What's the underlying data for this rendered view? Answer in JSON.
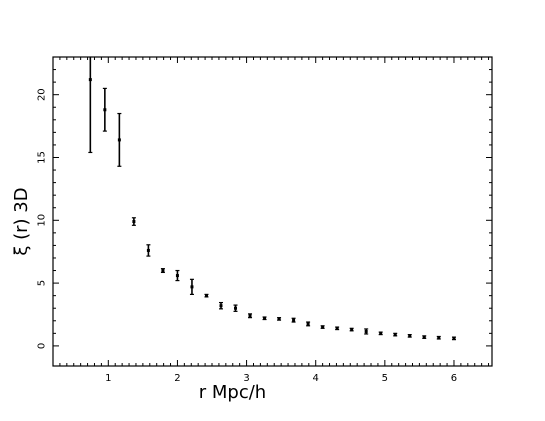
{
  "chart_data": {
    "type": "scatter",
    "title": "",
    "xlabel": "r  Mpc/h",
    "ylabel": "ξ (r)  3D",
    "xlim": [
      0.2,
      6.55
    ],
    "ylim": [
      -1.6,
      23.0
    ],
    "xticks": [
      1,
      2,
      3,
      4,
      5,
      6
    ],
    "yticks": [
      0,
      5,
      10,
      15,
      20
    ],
    "xtick_labels": [
      "1",
      "2",
      "3",
      "4",
      "5",
      "6"
    ],
    "ytick_labels": [
      "0",
      "5",
      "10",
      "15",
      "20"
    ],
    "grid": false,
    "legend": "none",
    "color": "#000000",
    "series": [
      {
        "points": [
          {
            "x": 0.74,
            "y": 21.2,
            "err": 5.8
          },
          {
            "x": 0.95,
            "y": 18.8,
            "err": 1.7
          },
          {
            "x": 1.16,
            "y": 16.4,
            "err": 2.1
          },
          {
            "x": 1.37,
            "y": 9.9,
            "err": 0.3
          },
          {
            "x": 1.58,
            "y": 7.6,
            "err": 0.45
          },
          {
            "x": 1.79,
            "y": 6.0,
            "err": 0.15
          },
          {
            "x": 2.0,
            "y": 5.6,
            "err": 0.4
          },
          {
            "x": 2.21,
            "y": 4.7,
            "err": 0.6
          },
          {
            "x": 2.42,
            "y": 4.0,
            "err": 0.1
          },
          {
            "x": 2.63,
            "y": 3.2,
            "err": 0.25
          },
          {
            "x": 2.84,
            "y": 3.0,
            "err": 0.25
          },
          {
            "x": 3.05,
            "y": 2.4,
            "err": 0.15
          },
          {
            "x": 3.26,
            "y": 2.2,
            "err": 0.1
          },
          {
            "x": 3.47,
            "y": 2.15,
            "err": 0.1
          },
          {
            "x": 3.68,
            "y": 2.05,
            "err": 0.15
          },
          {
            "x": 3.89,
            "y": 1.75,
            "err": 0.15
          },
          {
            "x": 4.1,
            "y": 1.5,
            "err": 0.1
          },
          {
            "x": 4.31,
            "y": 1.4,
            "err": 0.1
          },
          {
            "x": 4.52,
            "y": 1.3,
            "err": 0.1
          },
          {
            "x": 4.73,
            "y": 1.15,
            "err": 0.2
          },
          {
            "x": 4.94,
            "y": 1.0,
            "err": 0.1
          },
          {
            "x": 5.15,
            "y": 0.9,
            "err": 0.1
          },
          {
            "x": 5.36,
            "y": 0.8,
            "err": 0.1
          },
          {
            "x": 5.57,
            "y": 0.7,
            "err": 0.1
          },
          {
            "x": 5.78,
            "y": 0.65,
            "err": 0.1
          },
          {
            "x": 6.0,
            "y": 0.6,
            "err": 0.1
          }
        ]
      }
    ]
  }
}
